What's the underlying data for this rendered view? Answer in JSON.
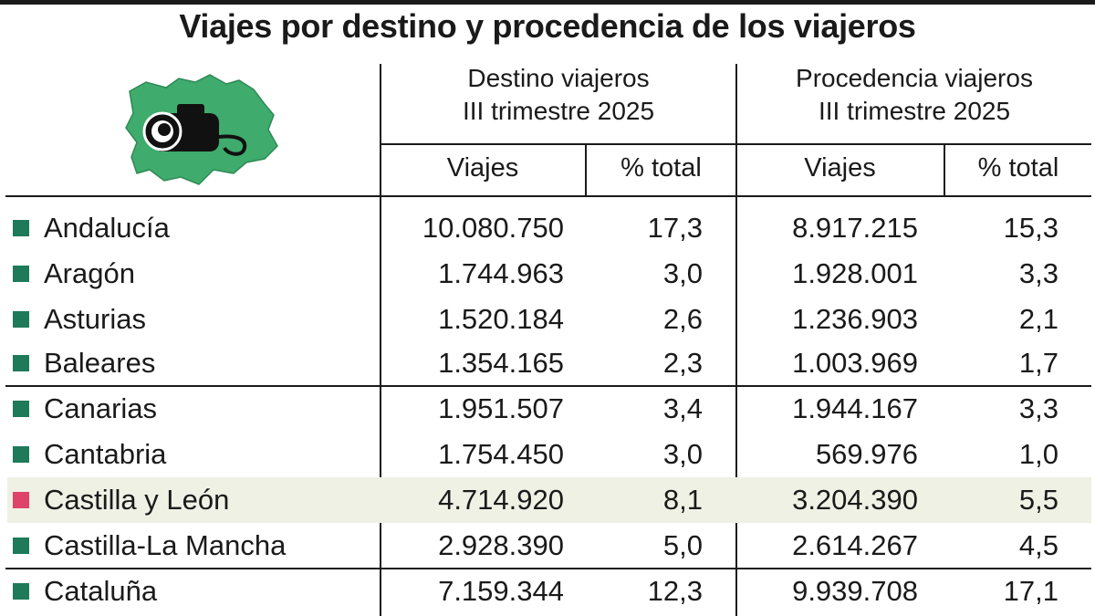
{
  "title": "Viajes por destino y procedencia de los viajeros",
  "colors": {
    "region_marker": "#1f7a5a",
    "highlight_marker": "#e0436a",
    "highlight_row": "#eef1e4",
    "map_fill": "#3fab6d"
  },
  "header": {
    "destino": {
      "line1": "Destino viajeros",
      "line2": "III trimestre 2025"
    },
    "procedencia": {
      "line1": "Procedencia viajeros",
      "line2": "III trimestre 2025"
    },
    "sub": {
      "viajes": "Viajes",
      "pct": "% total"
    }
  },
  "icon": "camera-over-castilla-y-leon-map",
  "chart_data": {
    "type": "table",
    "title": "Viajes por destino y procedencia de los viajeros",
    "columns": [
      "Destino viajeros III trimestre 2025 - Viajes",
      "Destino viajeros III trimestre 2025 - % total",
      "Procedencia viajeros III trimestre 2025 - Viajes",
      "Procedencia viajeros III trimestre 2025 - % total"
    ],
    "rows": [
      {
        "region": "Andalucía",
        "dest_viajes": "10.080.750",
        "dest_pct": "17,3",
        "proc_viajes": "8.917.215",
        "proc_pct": "15,3",
        "highlight": false
      },
      {
        "region": "Aragón",
        "dest_viajes": "1.744.963",
        "dest_pct": "3,0",
        "proc_viajes": "1.928.001",
        "proc_pct": "3,3",
        "highlight": false
      },
      {
        "region": "Asturias",
        "dest_viajes": "1.520.184",
        "dest_pct": "2,6",
        "proc_viajes": "1.236.903",
        "proc_pct": "2,1",
        "highlight": false
      },
      {
        "region": "Baleares",
        "dest_viajes": "1.354.165",
        "dest_pct": "2,3",
        "proc_viajes": "1.003.969",
        "proc_pct": "1,7",
        "highlight": false
      },
      {
        "region": "Canarias",
        "dest_viajes": "1.951.507",
        "dest_pct": "3,4",
        "proc_viajes": "1.944.167",
        "proc_pct": "3,3",
        "highlight": false
      },
      {
        "region": "Cantabria",
        "dest_viajes": "1.754.450",
        "dest_pct": "3,0",
        "proc_viajes": "569.976",
        "proc_pct": "1,0",
        "highlight": false
      },
      {
        "region": "Castilla y León",
        "dest_viajes": "4.714.920",
        "dest_pct": "8,1",
        "proc_viajes": "3.204.390",
        "proc_pct": "5,5",
        "highlight": true
      },
      {
        "region": "Castilla-La Mancha",
        "dest_viajes": "2.928.390",
        "dest_pct": "5,0",
        "proc_viajes": "2.614.267",
        "proc_pct": "4,5",
        "highlight": false
      },
      {
        "region": "Cataluña",
        "dest_viajes": "7.159.344",
        "dest_pct": "12,3",
        "proc_viajes": "9.939.708",
        "proc_pct": "17,1",
        "highlight": false
      }
    ]
  }
}
